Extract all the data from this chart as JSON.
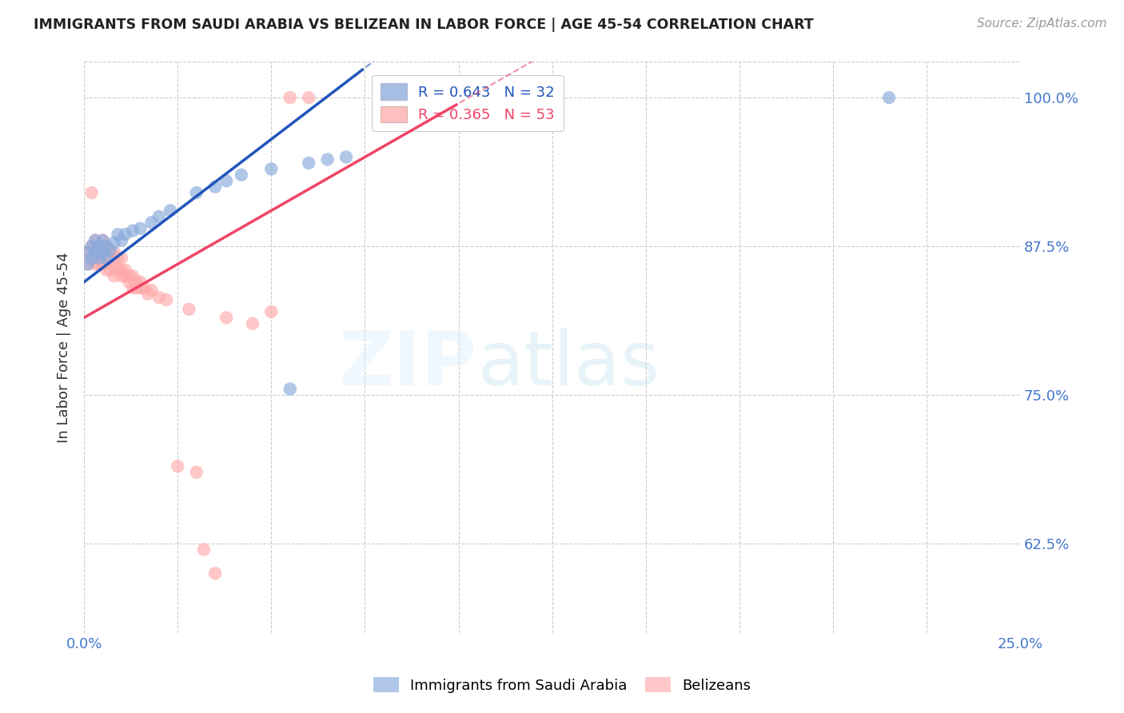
{
  "title": "IMMIGRANTS FROM SAUDI ARABIA VS BELIZEAN IN LABOR FORCE | AGE 45-54 CORRELATION CHART",
  "source": "Source: ZipAtlas.com",
  "ylabel": "In Labor Force | Age 45-54",
  "xlim": [
    0.0,
    0.25
  ],
  "ylim": [
    0.55,
    1.03
  ],
  "xticks": [
    0.0,
    0.025,
    0.05,
    0.075,
    0.1,
    0.125,
    0.15,
    0.175,
    0.2,
    0.225,
    0.25
  ],
  "yticks": [
    0.625,
    0.75,
    0.875,
    1.0
  ],
  "yticklabels_right": [
    "62.5%",
    "75.0%",
    "87.5%",
    "100.0%"
  ],
  "xticklabel_left": "0.0%",
  "xticklabel_right": "25.0%",
  "blue_color": "#88AADD",
  "pink_color": "#FFAAAA",
  "blue_line_color": "#2255BB",
  "pink_line_color": "#EE4466",
  "legend_blue_label": "R = 0.643   N = 32",
  "legend_pink_label": "R = 0.365   N = 53",
  "blue_line_slope": 2.4,
  "blue_line_intercept": 0.845,
  "pink_line_slope": 1.8,
  "pink_line_intercept": 0.815,
  "blue_scatter_x": [
    0.001,
    0.001,
    0.002,
    0.002,
    0.003,
    0.003,
    0.004,
    0.004,
    0.005,
    0.005,
    0.006,
    0.006,
    0.007,
    0.008,
    0.009,
    0.01,
    0.011,
    0.013,
    0.015,
    0.018,
    0.02,
    0.023,
    0.03,
    0.035,
    0.038,
    0.042,
    0.05,
    0.055,
    0.06,
    0.065,
    0.07,
    0.215
  ],
  "blue_scatter_y": [
    0.87,
    0.86,
    0.875,
    0.865,
    0.88,
    0.87,
    0.875,
    0.865,
    0.88,
    0.87,
    0.875,
    0.865,
    0.872,
    0.878,
    0.885,
    0.88,
    0.885,
    0.888,
    0.89,
    0.895,
    0.9,
    0.905,
    0.92,
    0.925,
    0.93,
    0.935,
    0.94,
    0.755,
    0.945,
    0.948,
    0.95,
    1.0
  ],
  "pink_scatter_x": [
    0.001,
    0.001,
    0.002,
    0.002,
    0.002,
    0.003,
    0.003,
    0.003,
    0.004,
    0.004,
    0.005,
    0.005,
    0.005,
    0.006,
    0.006,
    0.006,
    0.007,
    0.007,
    0.007,
    0.008,
    0.008,
    0.008,
    0.009,
    0.009,
    0.01,
    0.01,
    0.01,
    0.011,
    0.011,
    0.012,
    0.012,
    0.013,
    0.013,
    0.014,
    0.014,
    0.015,
    0.015,
    0.016,
    0.017,
    0.018,
    0.02,
    0.022,
    0.025,
    0.028,
    0.03,
    0.032,
    0.035,
    0.038,
    0.045,
    0.05,
    0.055,
    0.06,
    0.105
  ],
  "pink_scatter_y": [
    0.87,
    0.86,
    0.875,
    0.865,
    0.92,
    0.86,
    0.87,
    0.88,
    0.86,
    0.87,
    0.86,
    0.87,
    0.88,
    0.855,
    0.865,
    0.875,
    0.855,
    0.865,
    0.87,
    0.85,
    0.86,
    0.87,
    0.855,
    0.865,
    0.85,
    0.855,
    0.865,
    0.85,
    0.855,
    0.845,
    0.85,
    0.84,
    0.85,
    0.84,
    0.845,
    0.84,
    0.845,
    0.84,
    0.835,
    0.838,
    0.832,
    0.83,
    0.69,
    0.822,
    0.685,
    0.62,
    0.6,
    0.815,
    0.81,
    0.82,
    1.0,
    1.0,
    1.0
  ]
}
